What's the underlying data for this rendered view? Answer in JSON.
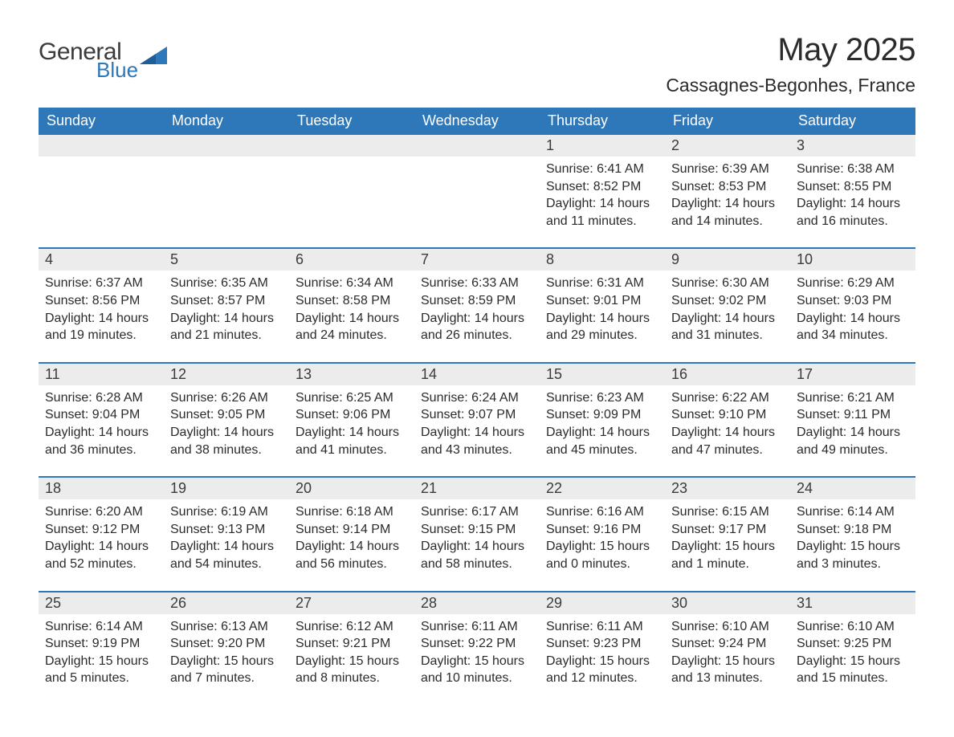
{
  "logo": {
    "word1": "General",
    "word2": "Blue",
    "triangle_color": "#2e77b8"
  },
  "header": {
    "month_title": "May 2025",
    "location": "Cassagnes-Begonhes, France"
  },
  "colors": {
    "header_bg": "#2e77b8",
    "header_text": "#ffffff",
    "daynum_bg": "#ececec",
    "rule": "#2e77b8",
    "text": "#2b2b2b"
  },
  "typography": {
    "title_fontsize": 40,
    "location_fontsize": 23,
    "dow_fontsize": 18,
    "daynum_fontsize": 18,
    "body_fontsize": 16
  },
  "days_of_week": [
    "Sunday",
    "Monday",
    "Tuesday",
    "Wednesday",
    "Thursday",
    "Friday",
    "Saturday"
  ],
  "labels": {
    "sunrise_prefix": "Sunrise: ",
    "sunset_prefix": "Sunset: ",
    "daylight_prefix": "Daylight: "
  },
  "weeks": [
    [
      {
        "empty": true
      },
      {
        "empty": true
      },
      {
        "empty": true
      },
      {
        "empty": true
      },
      {
        "num": "1",
        "sunrise": "6:41 AM",
        "sunset": "8:52 PM",
        "daylight": "14 hours and 11 minutes."
      },
      {
        "num": "2",
        "sunrise": "6:39 AM",
        "sunset": "8:53 PM",
        "daylight": "14 hours and 14 minutes."
      },
      {
        "num": "3",
        "sunrise": "6:38 AM",
        "sunset": "8:55 PM",
        "daylight": "14 hours and 16 minutes."
      }
    ],
    [
      {
        "num": "4",
        "sunrise": "6:37 AM",
        "sunset": "8:56 PM",
        "daylight": "14 hours and 19 minutes."
      },
      {
        "num": "5",
        "sunrise": "6:35 AM",
        "sunset": "8:57 PM",
        "daylight": "14 hours and 21 minutes."
      },
      {
        "num": "6",
        "sunrise": "6:34 AM",
        "sunset": "8:58 PM",
        "daylight": "14 hours and 24 minutes."
      },
      {
        "num": "7",
        "sunrise": "6:33 AM",
        "sunset": "8:59 PM",
        "daylight": "14 hours and 26 minutes."
      },
      {
        "num": "8",
        "sunrise": "6:31 AM",
        "sunset": "9:01 PM",
        "daylight": "14 hours and 29 minutes."
      },
      {
        "num": "9",
        "sunrise": "6:30 AM",
        "sunset": "9:02 PM",
        "daylight": "14 hours and 31 minutes."
      },
      {
        "num": "10",
        "sunrise": "6:29 AM",
        "sunset": "9:03 PM",
        "daylight": "14 hours and 34 minutes."
      }
    ],
    [
      {
        "num": "11",
        "sunrise": "6:28 AM",
        "sunset": "9:04 PM",
        "daylight": "14 hours and 36 minutes."
      },
      {
        "num": "12",
        "sunrise": "6:26 AM",
        "sunset": "9:05 PM",
        "daylight": "14 hours and 38 minutes."
      },
      {
        "num": "13",
        "sunrise": "6:25 AM",
        "sunset": "9:06 PM",
        "daylight": "14 hours and 41 minutes."
      },
      {
        "num": "14",
        "sunrise": "6:24 AM",
        "sunset": "9:07 PM",
        "daylight": "14 hours and 43 minutes."
      },
      {
        "num": "15",
        "sunrise": "6:23 AM",
        "sunset": "9:09 PM",
        "daylight": "14 hours and 45 minutes."
      },
      {
        "num": "16",
        "sunrise": "6:22 AM",
        "sunset": "9:10 PM",
        "daylight": "14 hours and 47 minutes."
      },
      {
        "num": "17",
        "sunrise": "6:21 AM",
        "sunset": "9:11 PM",
        "daylight": "14 hours and 49 minutes."
      }
    ],
    [
      {
        "num": "18",
        "sunrise": "6:20 AM",
        "sunset": "9:12 PM",
        "daylight": "14 hours and 52 minutes."
      },
      {
        "num": "19",
        "sunrise": "6:19 AM",
        "sunset": "9:13 PM",
        "daylight": "14 hours and 54 minutes."
      },
      {
        "num": "20",
        "sunrise": "6:18 AM",
        "sunset": "9:14 PM",
        "daylight": "14 hours and 56 minutes."
      },
      {
        "num": "21",
        "sunrise": "6:17 AM",
        "sunset": "9:15 PM",
        "daylight": "14 hours and 58 minutes."
      },
      {
        "num": "22",
        "sunrise": "6:16 AM",
        "sunset": "9:16 PM",
        "daylight": "15 hours and 0 minutes."
      },
      {
        "num": "23",
        "sunrise": "6:15 AM",
        "sunset": "9:17 PM",
        "daylight": "15 hours and 1 minute."
      },
      {
        "num": "24",
        "sunrise": "6:14 AM",
        "sunset": "9:18 PM",
        "daylight": "15 hours and 3 minutes."
      }
    ],
    [
      {
        "num": "25",
        "sunrise": "6:14 AM",
        "sunset": "9:19 PM",
        "daylight": "15 hours and 5 minutes."
      },
      {
        "num": "26",
        "sunrise": "6:13 AM",
        "sunset": "9:20 PM",
        "daylight": "15 hours and 7 minutes."
      },
      {
        "num": "27",
        "sunrise": "6:12 AM",
        "sunset": "9:21 PM",
        "daylight": "15 hours and 8 minutes."
      },
      {
        "num": "28",
        "sunrise": "6:11 AM",
        "sunset": "9:22 PM",
        "daylight": "15 hours and 10 minutes."
      },
      {
        "num": "29",
        "sunrise": "6:11 AM",
        "sunset": "9:23 PM",
        "daylight": "15 hours and 12 minutes."
      },
      {
        "num": "30",
        "sunrise": "6:10 AM",
        "sunset": "9:24 PM",
        "daylight": "15 hours and 13 minutes."
      },
      {
        "num": "31",
        "sunrise": "6:10 AM",
        "sunset": "9:25 PM",
        "daylight": "15 hours and 15 minutes."
      }
    ]
  ]
}
